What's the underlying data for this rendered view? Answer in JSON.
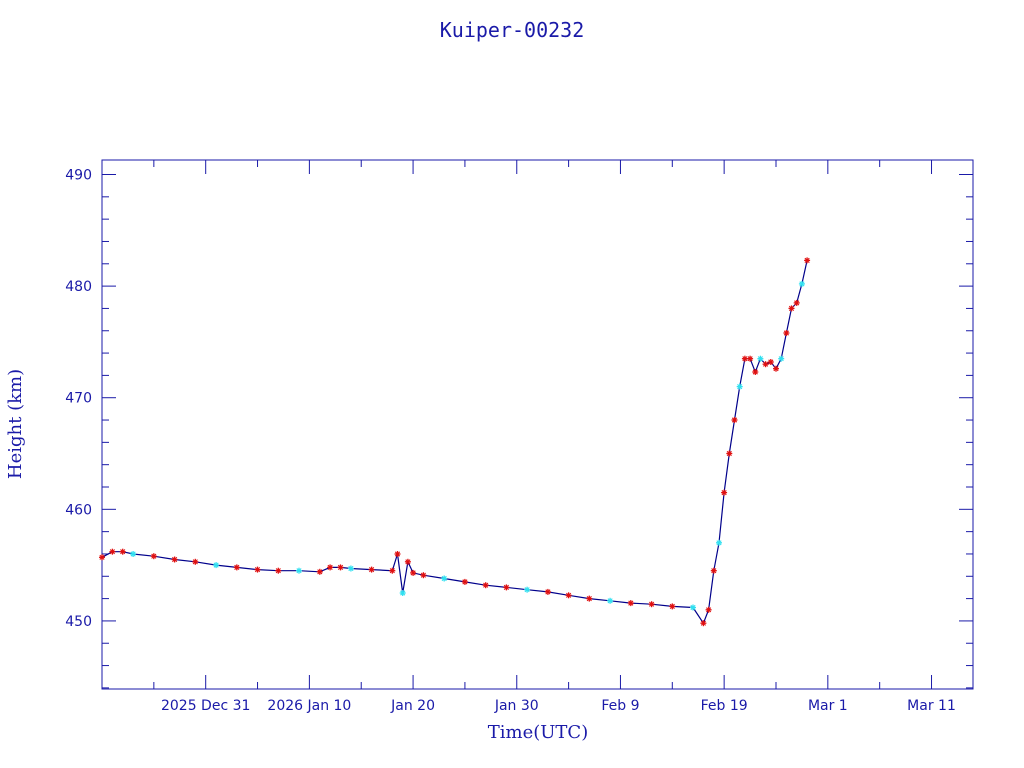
{
  "chart_data": {
    "type": "line",
    "title": "Kuiper-00232",
    "xlabel": "Time(UTC)",
    "ylabel": "Height (km)",
    "x_tick_labels": [
      "2025 Dec 31",
      "2026 Jan 10",
      "Jan 20",
      "Jan 30",
      "Feb  9",
      "Feb 19",
      "Mar  1",
      "Mar 11"
    ],
    "x_tick_dates": [
      "2025-12-31",
      "2026-01-10",
      "2026-01-20",
      "2026-01-30",
      "2026-02-09",
      "2026-02-19",
      "2026-03-01",
      "2026-03-11"
    ],
    "xlim": [
      "2025-12-21",
      "2026-03-15"
    ],
    "y_ticks": [
      450,
      460,
      470,
      480,
      490
    ],
    "ylim": [
      443.9,
      491.3
    ],
    "grid": false,
    "colors": {
      "axes": "#1a1aa8",
      "line": "#00008b",
      "marker_primary": "#e01010",
      "marker_secondary": "#30e0f0"
    },
    "series": [
      {
        "x": [
          "2025-12-21",
          "2025-12-22",
          "2025-12-23",
          "2025-12-24",
          "2025-12-26",
          "2025-12-28",
          "2025-12-30",
          "2026-01-01",
          "2026-01-03",
          "2026-01-05",
          "2026-01-07",
          "2026-01-09",
          "2026-01-11",
          "2026-01-12",
          "2026-01-13",
          "2026-01-14",
          "2026-01-16",
          "2026-01-18",
          "2026-01-18T12:00",
          "2026-01-19",
          "2026-01-19T12:00",
          "2026-01-20",
          "2026-01-21",
          "2026-01-23",
          "2026-01-25",
          "2026-01-27",
          "2026-01-29",
          "2026-01-31",
          "2026-02-02",
          "2026-02-04",
          "2026-02-06",
          "2026-02-08",
          "2026-02-10",
          "2026-02-12",
          "2026-02-14",
          "2026-02-16",
          "2026-02-17",
          "2026-02-17T12:00",
          "2026-02-18",
          "2026-02-18T12:00",
          "2026-02-19",
          "2026-02-19T12:00",
          "2026-02-20",
          "2026-02-20T12:00",
          "2026-02-21",
          "2026-02-21T12:00",
          "2026-02-22",
          "2026-02-22T12:00",
          "2026-02-23",
          "2026-02-23T12:00",
          "2026-02-24",
          "2026-02-24T12:00",
          "2026-02-25",
          "2026-02-25T12:00",
          "2026-02-26",
          "2026-02-26T12:00",
          "2026-02-27"
        ],
        "values": [
          455.7,
          456.2,
          456.2,
          456.0,
          455.8,
          455.5,
          455.3,
          455.0,
          454.8,
          454.6,
          454.5,
          454.5,
          454.4,
          454.8,
          454.8,
          454.7,
          454.6,
          454.5,
          456.0,
          452.5,
          455.3,
          454.3,
          454.1,
          453.8,
          453.5,
          453.2,
          453.0,
          452.8,
          452.6,
          452.3,
          452.0,
          451.8,
          451.6,
          451.5,
          451.3,
          451.2,
          449.8,
          451.0,
          454.5,
          457.0,
          461.5,
          465.0,
          468.0,
          471.0,
          473.5,
          473.5,
          472.3,
          473.5,
          473.0,
          473.2,
          472.6,
          473.5,
          475.8,
          478.0,
          478.5,
          480.2,
          482.3
        ]
      }
    ]
  }
}
